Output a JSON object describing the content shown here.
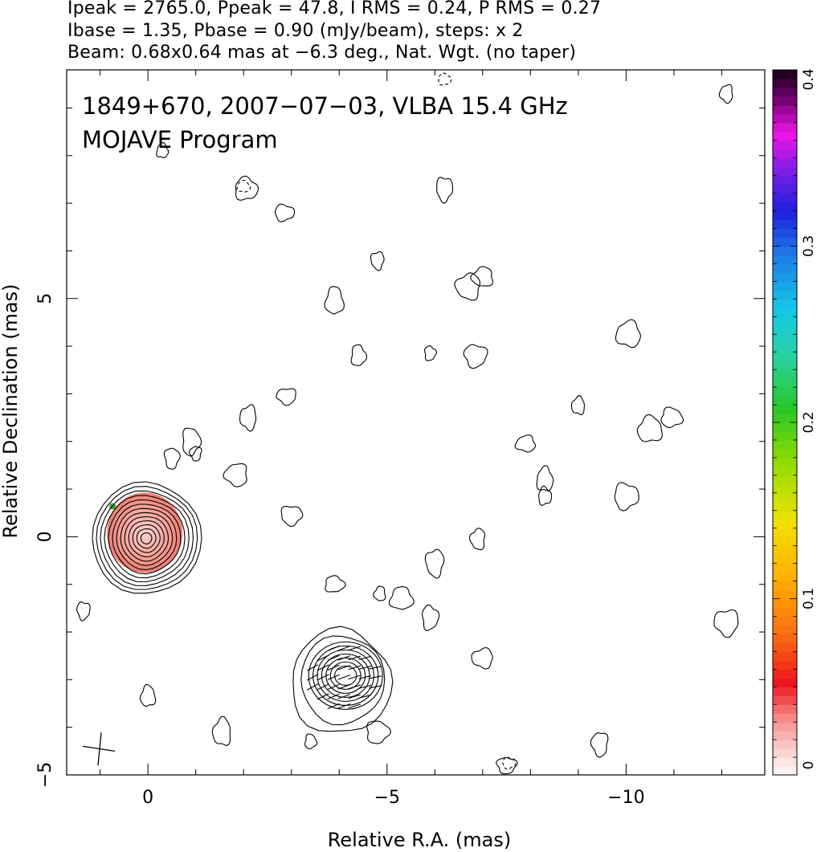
{
  "header": {
    "line1": "Ipeak = 2765.0, Ppeak = 47.8, I RMS = 0.24, P RMS = 0.27",
    "line2": "Ibase = 1.35, Pbase = 0.90 (mJy/beam), steps: x 2",
    "line3": "Beam: 0.68x0.64 mas at −6.3 deg., Nat. Wgt. (no taper)"
  },
  "chart_data": {
    "type": "contour",
    "title": "1849+670, 2007−07−03, VLBA 15.4 GHz",
    "subtitle": "MOJAVE Program",
    "xlabel": "Relative R.A. (mas)",
    "ylabel": "Relative Declination (mas)",
    "xlim": [
      1.7,
      -12.9
    ],
    "ylim": [
      -5.0,
      9.8
    ],
    "x_reversed": true,
    "xticks": [
      0,
      -5,
      -10
    ],
    "xtick_labels": [
      "0",
      "−5",
      "−10"
    ],
    "yticks": [
      -5,
      0,
      5
    ],
    "ytick_labels": [
      "−5",
      "0",
      "5"
    ],
    "colorbar": {
      "min": 0,
      "max": 0.4,
      "ticks": [
        0,
        0.1,
        0.2,
        0.3,
        0.4
      ],
      "tick_labels": [
        "0",
        "0.1",
        "0.2",
        "0.3",
        "0.4"
      ]
    },
    "components": [
      {
        "name": "core",
        "x": 0.0,
        "y": 0.0,
        "contour_levels": 13
      },
      {
        "name": "jet",
        "x": -4.1,
        "y": -2.95,
        "contour_levels": 9
      }
    ],
    "beam": {
      "major_mas": 0.68,
      "minor_mas": 0.64,
      "pa_deg": -6.3
    },
    "intensity_peak_mJy": 2765.0,
    "polarization_peak_mJy": 47.8,
    "noise_blobs": [
      [
        -0.3,
        8.1
      ],
      [
        -2.05,
        7.3
      ],
      [
        -2.85,
        6.8
      ],
      [
        -6.2,
        7.3
      ],
      [
        -4.8,
        5.8
      ],
      [
        -6.7,
        5.25
      ],
      [
        -7.0,
        5.45
      ],
      [
        -3.9,
        4.95
      ],
      [
        -4.4,
        3.8
      ],
      [
        -5.9,
        3.85
      ],
      [
        -6.85,
        3.8
      ],
      [
        -2.9,
        2.95
      ],
      [
        -2.1,
        2.5
      ],
      [
        -9.0,
        2.75
      ],
      [
        -10.5,
        2.25
      ],
      [
        -10.95,
        2.5
      ],
      [
        -0.9,
        2.0
      ],
      [
        -0.5,
        1.65
      ],
      [
        -1.0,
        1.75
      ],
      [
        -1.85,
        1.3
      ],
      [
        -7.9,
        1.95
      ],
      [
        -8.3,
        1.2
      ],
      [
        -8.3,
        0.85
      ],
      [
        -10.0,
        0.85
      ],
      [
        -3.0,
        0.45
      ],
      [
        -6.0,
        -0.55
      ],
      [
        -6.9,
        -0.05
      ],
      [
        -4.85,
        -1.2
      ],
      [
        -5.3,
        -1.3
      ],
      [
        -3.9,
        -1.0
      ],
      [
        -5.9,
        -1.7
      ],
      [
        1.35,
        -1.55
      ],
      [
        -12.1,
        -1.8
      ],
      [
        -7.0,
        -2.55
      ],
      [
        -1.55,
        -4.1
      ],
      [
        0.0,
        -3.35
      ],
      [
        -3.4,
        -4.3
      ],
      [
        -4.8,
        -4.1
      ],
      [
        -7.5,
        -4.8
      ],
      [
        -9.45,
        -4.35
      ],
      [
        -12.1,
        9.3
      ],
      [
        -10.05,
        4.25
      ]
    ]
  }
}
